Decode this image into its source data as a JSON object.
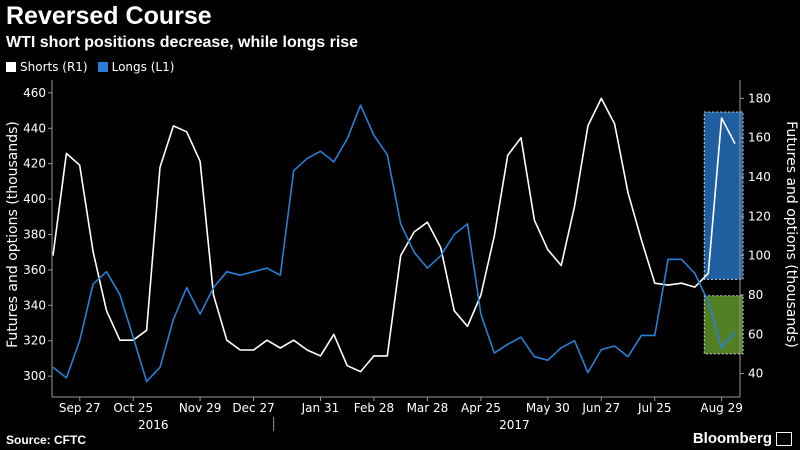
{
  "chart_data": {
    "type": "line",
    "title": "Reversed Course",
    "subtitle": "WTI short positions decrease, while longs rise",
    "left_axis_label": "Futures and options (thousands)",
    "right_axis_label": "Futures and options (thousands)",
    "left_ylim": [
      295,
      465
    ],
    "left_ticks": [
      300,
      320,
      340,
      360,
      380,
      400,
      420,
      440,
      460
    ],
    "right_ylim": [
      34.2,
      187.3
    ],
    "right_ticks": [
      40,
      60,
      80,
      100,
      120,
      140,
      160,
      180
    ],
    "x_tick_labels": [
      "Sep 27",
      "Oct 25",
      "Nov 29",
      "Dec 27",
      "Jan 31",
      "Feb 28",
      "Mar 28",
      "Apr 25",
      "May 30",
      "Jun 27",
      "Jul 25",
      "Aug 29"
    ],
    "x_tick_index": [
      2,
      6,
      11,
      15,
      20,
      24,
      28,
      32,
      37,
      41,
      45,
      50
    ],
    "year_labels": [
      "2016",
      "2017"
    ],
    "year_label_index": [
      7.5,
      34.5
    ],
    "year_divider_index": 16.5,
    "legend": {
      "placement": "top-left"
    },
    "grid": false,
    "series": [
      {
        "name": "Shorts (R1)",
        "axis": "right",
        "color": "#ffffff",
        "values": [
          100,
          152,
          146,
          102,
          72,
          57,
          57,
          62,
          145,
          166,
          163,
          148,
          80,
          57,
          52,
          52,
          57,
          53,
          57,
          52,
          49,
          60,
          44,
          41,
          49,
          49,
          100,
          112,
          117,
          104,
          72,
          64,
          80,
          110,
          151,
          160,
          118,
          103,
          95,
          125,
          166,
          180,
          167,
          132,
          108,
          86,
          85,
          86,
          84,
          91,
          170,
          157
        ]
      },
      {
        "name": "Longs (L1)",
        "axis": "left",
        "color": "#2a7fd4",
        "values": [
          305,
          299,
          320,
          352,
          359,
          346,
          322,
          297,
          305,
          332,
          350,
          335,
          350,
          359,
          357,
          359,
          361,
          357,
          416,
          423,
          427,
          421,
          434,
          453,
          436,
          425,
          386,
          370,
          361,
          368,
          380,
          386,
          335,
          313,
          318,
          322,
          311,
          309,
          316,
          320,
          302,
          315,
          317,
          311,
          323,
          323,
          366,
          366,
          358,
          342,
          316,
          325
        ]
      }
    ],
    "annotations": [
      {
        "series": "Shorts (R1)",
        "from_index": 49,
        "to_index": 51,
        "color": "#2a7fd4"
      },
      {
        "series": "Longs (L1)",
        "from_index": 49,
        "to_index": 51,
        "color": "#6ea830"
      }
    ]
  },
  "source": "Source: CFTC",
  "brand": "Bloomberg",
  "legend_items": [
    {
      "label": "Shorts (R1)",
      "color": "#ffffff"
    },
    {
      "label": "Longs (L1)",
      "color": "#2a7fd4"
    }
  ]
}
